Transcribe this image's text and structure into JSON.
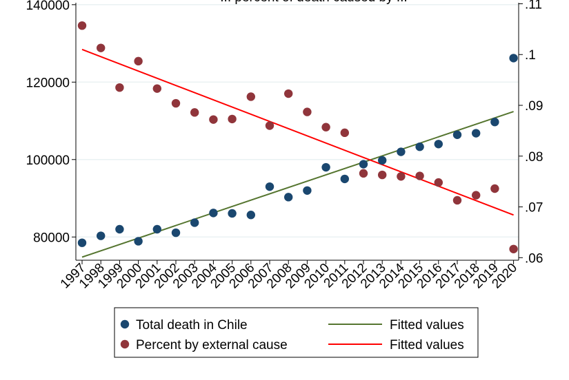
{
  "chart_data": {
    "type": "scatter",
    "title": "... percent of death caused by ...",
    "x": [
      1997,
      1998,
      1999,
      2000,
      2001,
      2002,
      2003,
      2004,
      2005,
      2006,
      2007,
      2008,
      2009,
      2010,
      2011,
      2012,
      2013,
      2014,
      2015,
      2016,
      2017,
      2018,
      2019,
      2020
    ],
    "x_tick_labels": [
      "1997",
      "1998",
      "1999",
      "2000",
      "2001",
      "2002",
      "2003",
      "2004",
      "2005",
      "2006",
      "2007",
      "2008",
      "2009",
      "2010",
      "2011",
      "2012",
      "2013",
      "2014",
      "2015",
      "2016",
      "2017",
      "2018",
      "2019",
      "2020"
    ],
    "y_left": {
      "ylim": [
        74000,
        140500
      ],
      "ticks": [
        80000,
        100000,
        120000,
        140000
      ],
      "tick_labels": [
        "80000",
        "100000",
        "120000",
        "140000"
      ]
    },
    "y_right": {
      "ylim": [
        0.0595,
        0.1102
      ],
      "ticks": [
        0.06,
        0.07,
        0.08,
        0.09,
        0.1,
        0.11
      ],
      "tick_labels": [
        ".06",
        ".07",
        ".08",
        ".09",
        ".1",
        ".11"
      ]
    },
    "series": [
      {
        "name": "Total death in Chile",
        "kind": "scatter",
        "axis": "left",
        "color": "#1a476f",
        "values": [
          78500,
          80300,
          82000,
          78900,
          82000,
          81100,
          83700,
          86200,
          86100,
          85700,
          93000,
          90300,
          92000,
          98000,
          95000,
          98800,
          99800,
          102000,
          103300,
          104000,
          106400,
          106800,
          109700,
          126200
        ]
      },
      {
        "name": "Percent by external cause",
        "kind": "scatter",
        "axis": "right",
        "color": "#90353b",
        "values": [
          0.1057,
          0.1013,
          0.0935,
          0.0987,
          0.0933,
          0.0904,
          0.0886,
          0.0872,
          0.0873,
          0.0917,
          0.086,
          0.0923,
          0.0887,
          0.0857,
          0.0846,
          0.0766,
          0.0763,
          0.076,
          0.0761,
          0.0748,
          0.0713,
          0.0723,
          0.0736,
          0.0617
        ]
      },
      {
        "name": "Fitted values",
        "kind": "line",
        "axis": "left",
        "color": "#55752f",
        "x": [
          1997,
          2020
        ],
        "values": [
          74800,
          112400
        ]
      },
      {
        "name": "Fitted values",
        "kind": "line",
        "axis": "right",
        "color": "#ff0000",
        "x": [
          1997,
          2020
        ],
        "values": [
          0.101,
          0.0684
        ]
      }
    ],
    "grid": "horizontal",
    "legend_position": "bottom"
  }
}
